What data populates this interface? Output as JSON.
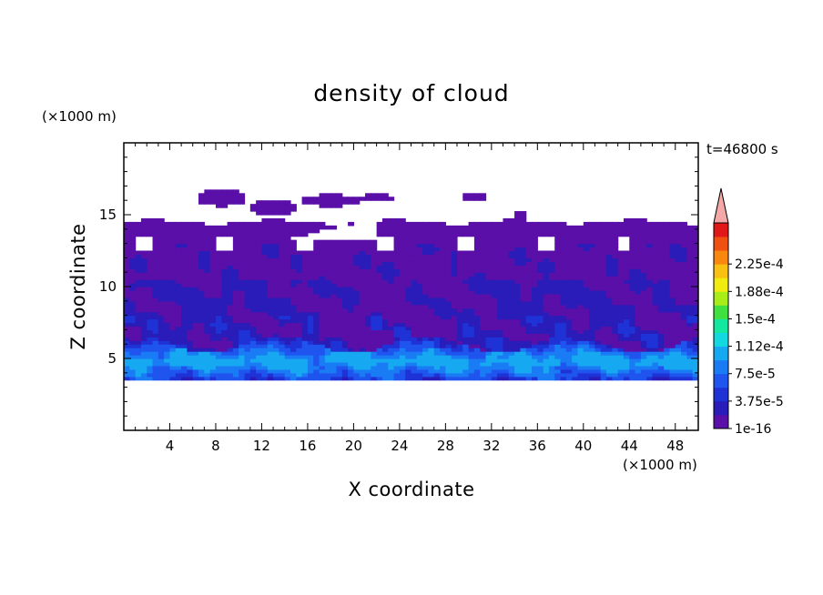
{
  "chart_data": {
    "type": "heatmap",
    "title": "density of cloud",
    "xlabel": "X coordinate",
    "ylabel": "Z coordinate",
    "x_unit": "(×1000 m)",
    "z_unit": "(×1000 m)",
    "time_label": "t=46800 s",
    "xlim": [
      0,
      50
    ],
    "ylim": [
      0,
      20
    ],
    "x_ticks": [
      4,
      8,
      12,
      16,
      20,
      24,
      28,
      32,
      36,
      40,
      44,
      48
    ],
    "y_ticks": [
      5,
      10,
      15
    ],
    "colorbar": {
      "levels": [
        1e-16,
        1.875e-05,
        3.75e-05,
        5.625e-05,
        7.5e-05,
        9.375e-05,
        0.0001125,
        0.00013125,
        0.00015,
        0.00016875,
        0.0001875,
        0.00020625,
        0.000225,
        0.00024375
      ],
      "labels": [
        "1e-16",
        "3.75e-5",
        "7.5e-5",
        "1.12e-4",
        "1.5e-4",
        "1.88e-4",
        "2.25e-4"
      ],
      "colors": [
        "#5a0fa8",
        "#2a1cb8",
        "#1e32d6",
        "#1f55ee",
        "#1a7cf4",
        "#16a8f0",
        "#12d8e0",
        "#12e8a0",
        "#40e040",
        "#a8ec18",
        "#f0ec10",
        "#f8c010",
        "#f88810",
        "#f05010",
        "#e01818"
      ],
      "overflow_color": "#f4a8a8"
    },
    "cloud_layer": {
      "base_km": 3.5,
      "dense_band_km": [
        4,
        6
      ],
      "mid_band_km": [
        6,
        10
      ],
      "top_km": 14.5,
      "detached_top_km": 16.5,
      "max_density": 7.5e-05
    }
  }
}
